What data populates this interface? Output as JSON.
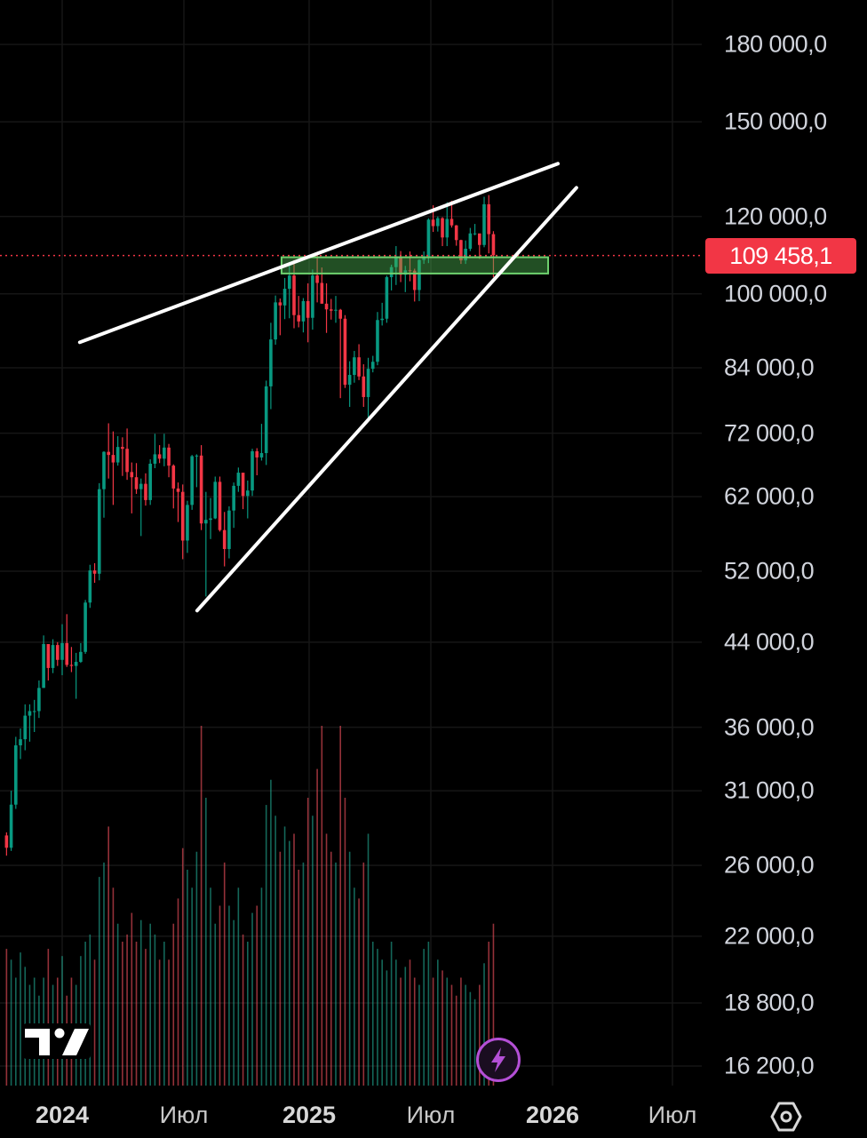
{
  "chart_data": {
    "type": "candlestick",
    "title": "",
    "scale": "log",
    "ylim": [
      16200,
      180000
    ],
    "y_ticks": [
      "180 000,0",
      "150 000,0",
      "120 000,0",
      "100 000,0",
      "84 000,0",
      "72 000,0",
      "62 000,0",
      "52 000,0",
      "44 000,0",
      "36 000,0",
      "31 000,0",
      "26 000,0",
      "22 000,0",
      "18 800,0",
      "16 200,0"
    ],
    "y_tick_values": [
      180000,
      150000,
      120000,
      100000,
      84000,
      72000,
      62000,
      52000,
      44000,
      36000,
      31000,
      26000,
      22000,
      18800,
      16200
    ],
    "x_ticks": [
      {
        "label": "2024",
        "year": true
      },
      {
        "label": "Июл",
        "year": false
      },
      {
        "label": "2025",
        "year": true
      },
      {
        "label": "Июл",
        "year": false
      },
      {
        "label": "2026",
        "year": true
      },
      {
        "label": "Июл",
        "year": false
      }
    ],
    "interval": "1W",
    "first_candle": "2023-10-09",
    "units": "thousands",
    "first_open": 27.9,
    "close": [
      27.1,
      30.0,
      34.5,
      35.0,
      37.0,
      37.4,
      37.4,
      39.5,
      43.8,
      41.4,
      43.7,
      42.2,
      43.9,
      41.7,
      41.6,
      42.0,
      43.0,
      48.3,
      52.1,
      51.7,
      63.1,
      68.9,
      68.4,
      67.2,
      69.7,
      69.4,
      65.7,
      64.9,
      63.1,
      63.9,
      61.5,
      67.0,
      68.5,
      67.8,
      69.6,
      66.7,
      63.2,
      62.7,
      55.9,
      60.8,
      68.2,
      68.3,
      58.2,
      58.7,
      58.9,
      64.2,
      57.3,
      54.8,
      60.0,
      63.6,
      65.6,
      62.1,
      62.9,
      69.0,
      68.0,
      68.7,
      80.4,
      89.8,
      98.0,
      97.3,
      101.2,
      104.4,
      95.1,
      93.7,
      98.3,
      94.5,
      104.4,
      102.6,
      97.7,
      96.4,
      96.1,
      96.3,
      94.3,
      80.7,
      82.6,
      86.1,
      82.3,
      78.4,
      83.8,
      85.2,
      94.0,
      94.3,
      104.0,
      106.5,
      109.0,
      104.6,
      105.7,
      105.6,
      100.9,
      108.3,
      109.2,
      119.1,
      117.3,
      119.5,
      114.2,
      119.3,
      117.5,
      113.5,
      108.2,
      111.2,
      115.3,
      115.3,
      112.2,
      123.5,
      115.1,
      109.5
    ],
    "high": [
      28.1,
      31.0,
      35.2,
      35.9,
      38.0,
      38.0,
      38.4,
      40.2,
      44.7,
      43.4,
      44.3,
      44.0,
      45.9,
      47.0,
      43.5,
      42.9,
      43.9,
      48.6,
      52.8,
      53.0,
      64.0,
      69.0,
      73.7,
      72.3,
      71.5,
      71.3,
      72.8,
      67.2,
      67.1,
      64.7,
      65.5,
      67.7,
      71.9,
      70.0,
      71.9,
      70.2,
      66.9,
      64.1,
      63.8,
      61.4,
      68.4,
      68.5,
      70.0,
      62.7,
      61.8,
      65.0,
      65.0,
      59.8,
      60.6,
      64.1,
      66.4,
      65.4,
      64.4,
      69.4,
      69.5,
      73.6,
      81.5,
      93.4,
      99.6,
      98.9,
      103.8,
      107.8,
      108.3,
      99.5,
      99.0,
      102.5,
      105.9,
      109.6,
      106.4,
      102.5,
      98.8,
      99.5,
      96.5,
      95.1,
      85.3,
      87.4,
      88.8,
      84.7,
      86.0,
      86.4,
      95.8,
      97.9,
      104.4,
      107.1,
      111.9,
      110.6,
      106.8,
      110.5,
      106.1,
      108.5,
      110.5,
      119.5,
      123.2,
      120.0,
      119.8,
      124.1,
      124.5,
      117.6,
      113.6,
      113.4,
      116.8,
      117.9,
      113.8,
      125.7,
      126.2,
      115.9
    ],
    "low": [
      26.6,
      26.9,
      29.7,
      33.4,
      34.1,
      34.8,
      35.6,
      36.8,
      39.5,
      40.2,
      40.9,
      41.6,
      40.7,
      41.5,
      41.0,
      38.5,
      41.9,
      42.8,
      47.7,
      50.6,
      50.9,
      59.0,
      64.7,
      60.8,
      66.7,
      65.1,
      64.5,
      59.6,
      62.4,
      56.5,
      60.7,
      60.8,
      66.3,
      67.1,
      66.6,
      64.9,
      60.3,
      58.4,
      53.5,
      54.3,
      60.1,
      63.4,
      57.3,
      49.0,
      56.1,
      58.8,
      57.1,
      52.6,
      53.6,
      57.6,
      62.7,
      60.2,
      58.9,
      62.1,
      65.2,
      67.5,
      66.8,
      76.2,
      88.7,
      90.7,
      94.2,
      94.4,
      92.2,
      92.4,
      91.3,
      89.2,
      91.9,
      98.0,
      97.7,
      91.2,
      94.1,
      93.4,
      78.2,
      80.1,
      76.6,
      81.1,
      81.6,
      76.6,
      74.5,
      83.1,
      84.5,
      92.8,
      93.4,
      100.8,
      102.1,
      102.8,
      100.4,
      103.0,
      98.2,
      98.3,
      107.3,
      107.5,
      115.7,
      115.8,
      111.9,
      111.9,
      116.9,
      112.0,
      107.3,
      107.3,
      110.6,
      114.8,
      108.6,
      111.6,
      110.0,
      104.0
    ],
    "volume_relative": [
      38,
      35,
      30,
      37,
      33,
      28,
      30,
      25,
      30,
      38,
      28,
      30,
      36,
      25,
      30,
      28,
      36,
      40,
      42,
      35,
      58,
      62,
      72,
      55,
      45,
      40,
      42,
      48,
      40,
      46,
      38,
      45,
      42,
      35,
      40,
      35,
      45,
      52,
      66,
      60,
      55,
      65,
      100,
      80,
      55,
      45,
      50,
      62,
      50,
      46,
      55,
      42,
      40,
      48,
      50,
      55,
      78,
      85,
      75,
      65,
      72,
      68,
      70,
      60,
      62,
      80,
      75,
      88,
      100,
      70,
      65,
      62,
      100,
      80,
      65,
      55,
      52,
      62,
      70,
      40,
      38,
      35,
      32,
      40,
      35,
      30,
      33,
      35,
      30,
      28,
      38,
      40,
      30,
      35,
      32,
      30,
      28,
      25,
      30,
      28,
      26,
      24,
      28,
      34,
      40,
      45
    ],
    "last_price": 109458.1,
    "last_price_label": "109 458,1",
    "drawings": {
      "upper_trendline": {
        "from": {
          "candle": 15.8,
          "price": 89200
        },
        "to": {
          "candle": 118.9,
          "price": 135900
        }
      },
      "lower_trendline": {
        "from": {
          "candle": 41.1,
          "price": 47400
        },
        "to": {
          "candle": 122.9,
          "price": 128400
        }
      },
      "support_zone": {
        "from_candle": 59.3,
        "to_candle": 116.8,
        "price_top": 109000,
        "price_bottom": 104900
      }
    },
    "colors": {
      "up": "#089981",
      "down": "#f23645",
      "zone": "#4caf50",
      "line": "#ffffff",
      "price_tag": "#f23645"
    }
  },
  "ui": {
    "logo_text": "TV",
    "bolt_icon": "lightning-icon",
    "settings_icon": "settings-icon"
  }
}
